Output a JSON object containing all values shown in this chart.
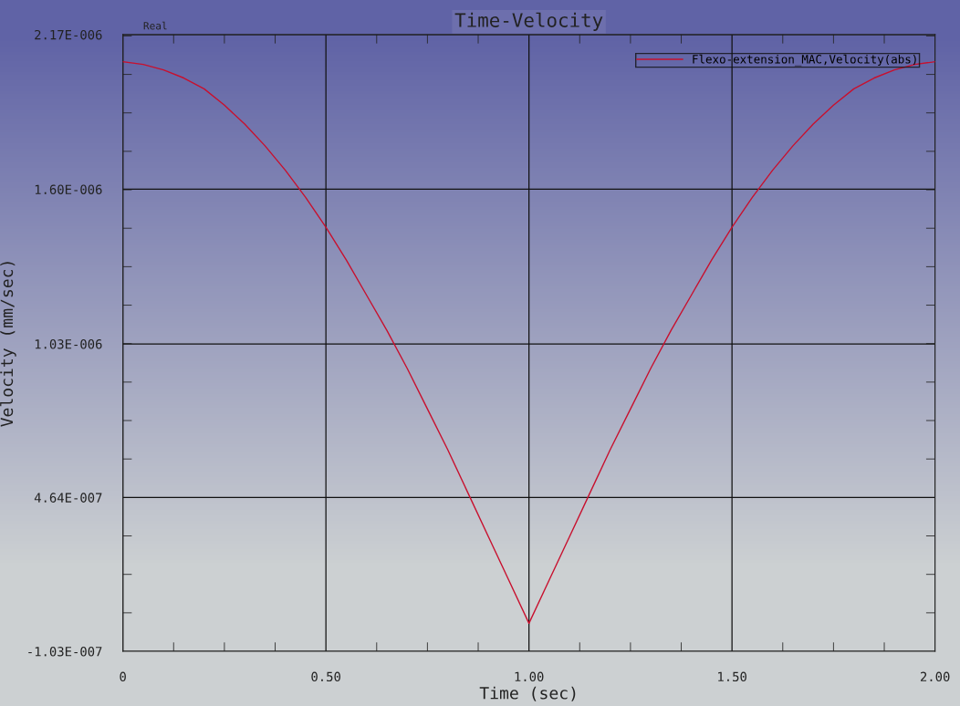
{
  "chart_data": {
    "type": "line",
    "title": "Time-Velocity",
    "xlabel": "Time (sec)",
    "ylabel": "Velocity (mm/sec)",
    "annotations": [
      "Real"
    ],
    "x": [
      0,
      0.05,
      0.1,
      0.15,
      0.2,
      0.25,
      0.3,
      0.35,
      0.4,
      0.45,
      0.5,
      0.55,
      0.6,
      0.65,
      0.7,
      0.75,
      0.8,
      0.85,
      0.9,
      0.95,
      1.0,
      1.05,
      1.1,
      1.15,
      1.2,
      1.25,
      1.3,
      1.35,
      1.4,
      1.45,
      1.5,
      1.55,
      1.6,
      1.65,
      1.7,
      1.75,
      1.8,
      1.85,
      1.9,
      1.95,
      2.0
    ],
    "series": [
      {
        "name": "Flexo-extension_MAC,Velocity(abs)",
        "color": "#c8102e",
        "values": [
          2.07e-06,
          2.06e-06,
          2.04e-06,
          2.01e-06,
          1.97e-06,
          1.91e-06,
          1.84e-06,
          1.76e-06,
          1.67e-06,
          1.57e-06,
          1.46e-06,
          1.34e-06,
          1.21e-06,
          1.08e-06,
          9.4e-07,
          7.9e-07,
          6.4e-07,
          4.8e-07,
          3.2e-07,
          1.6e-07,
          0,
          1.6e-07,
          3.2e-07,
          4.8e-07,
          6.4e-07,
          7.9e-07,
          9.4e-07,
          1.08e-06,
          1.21e-06,
          1.34e-06,
          1.46e-06,
          1.57e-06,
          1.67e-06,
          1.76e-06,
          1.84e-06,
          1.91e-06,
          1.97e-06,
          2.01e-06,
          2.04e-06,
          2.06e-06,
          2.07e-06
        ]
      }
    ],
    "xlim": [
      0,
      2.0
    ],
    "xticks": [
      {
        "value": 0,
        "label": "0"
      },
      {
        "value": 0.5,
        "label": "0.50"
      },
      {
        "value": 1.0,
        "label": "1.00"
      },
      {
        "value": 1.5,
        "label": "1.50"
      },
      {
        "value": 2.0,
        "label": "2.00"
      }
    ],
    "ylim": [
      -1.03e-07,
      2.17e-06
    ],
    "yticks": [
      {
        "value": -1.03e-07,
        "label": "-1.03E-007"
      },
      {
        "value": 4.64e-07,
        "label": "4.64E-007"
      },
      {
        "value": 1.03e-06,
        "label": "1.03E-006"
      },
      {
        "value": 1.6e-06,
        "label": "1.60E-006"
      },
      {
        "value": 2.17e-06,
        "label": "2.17E-006"
      }
    ],
    "grid": true,
    "legend": "top right",
    "line_style": "solid",
    "marker": "none"
  }
}
